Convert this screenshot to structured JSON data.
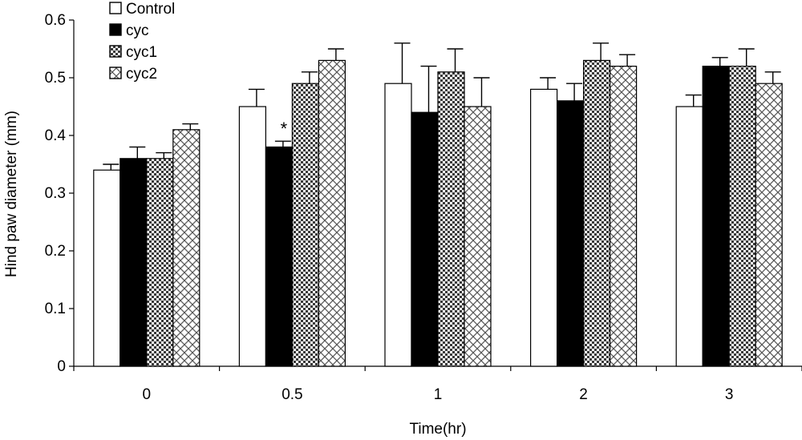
{
  "chart_data": {
    "type": "bar",
    "title": "",
    "xlabel": "Time(hr)",
    "ylabel": "Hind paw diameter (mm)",
    "ylim": [
      0,
      0.6
    ],
    "yticks": [
      "0",
      "0.1",
      "0.2",
      "0.3",
      "0.4",
      "0.5",
      "0.6"
    ],
    "categories": [
      "0",
      "0.5",
      "1",
      "2",
      "3"
    ],
    "grid": false,
    "legend_position": "top-left",
    "series": [
      {
        "name": "Control",
        "pattern": "solid-white",
        "values": [
          0.34,
          0.45,
          0.49,
          0.48,
          0.45
        ],
        "errors": [
          0.01,
          0.03,
          0.07,
          0.02,
          0.02
        ]
      },
      {
        "name": "cyc",
        "pattern": "solid-black",
        "values": [
          0.36,
          0.38,
          0.44,
          0.46,
          0.52
        ],
        "errors": [
          0.02,
          0.01,
          0.08,
          0.03,
          0.015
        ]
      },
      {
        "name": "cyc1",
        "pattern": "dense-checker",
        "values": [
          0.36,
          0.49,
          0.51,
          0.53,
          0.52
        ],
        "errors": [
          0.01,
          0.02,
          0.04,
          0.03,
          0.03
        ]
      },
      {
        "name": "cyc2",
        "pattern": "light-crosshatch",
        "values": [
          0.41,
          0.53,
          0.45,
          0.52,
          0.49
        ],
        "errors": [
          0.01,
          0.02,
          0.05,
          0.02,
          0.02
        ]
      }
    ],
    "annotations": [
      {
        "text": "*",
        "category": "0.5",
        "series": "cyc"
      }
    ]
  }
}
